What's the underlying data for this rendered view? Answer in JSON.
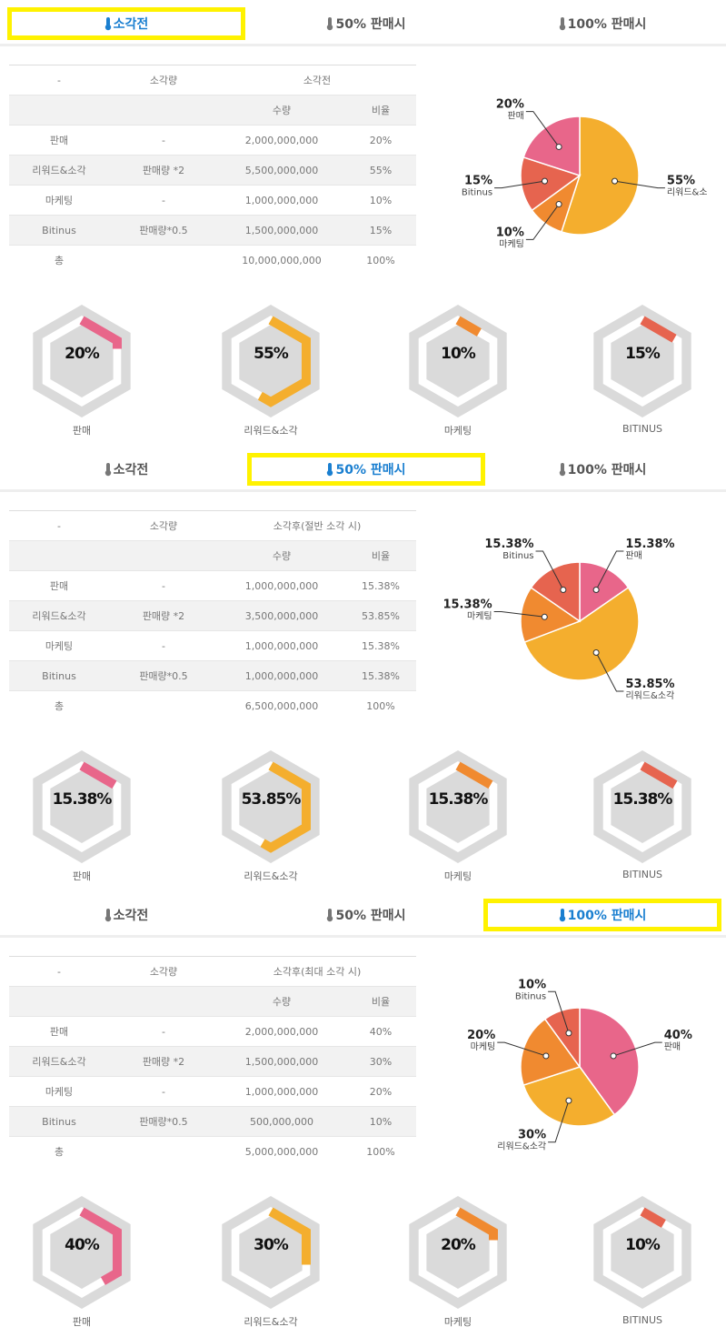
{
  "tab_labels": [
    "소각전",
    "50% 판매시",
    "100% 판매시"
  ],
  "colors": {
    "active_tab": "#1a7fd0",
    "highlight": "#fff200",
    "판매": "#e8668a",
    "리워드&소각": "#f4ae2e",
    "마케팅": "#f08a30",
    "Bitinus": "#e6644f"
  },
  "sections": [
    {
      "active_tab": 0,
      "table": {
        "headers": [
          "-",
          "소각량",
          "소각전"
        ],
        "sub": [
          "수량",
          "비율"
        ],
        "rows": [
          [
            "판매",
            "-",
            "2,000,000,000",
            "20%"
          ],
          [
            "리워드&소각",
            "판매량 *2",
            "5,500,000,000",
            "55%"
          ],
          [
            "마케팅",
            "-",
            "1,000,000,000",
            "10%"
          ],
          [
            "Bitinus",
            "판매량*0.5",
            "1,500,000,000",
            "15%"
          ],
          [
            "총",
            "",
            "10,000,000,000",
            "100%"
          ]
        ]
      },
      "pie": [
        {
          "key": "리워드&소각",
          "label": "리워드&소각",
          "value": 55,
          "display": "55%"
        },
        {
          "key": "마케팅",
          "label": "마케팅",
          "value": 10,
          "display": "10%"
        },
        {
          "key": "Bitinus",
          "label": "Bitinus",
          "value": 15,
          "display": "15%"
        },
        {
          "key": "판매",
          "label": "판매",
          "value": 20,
          "display": "20%"
        }
      ],
      "hexes": [
        {
          "key": "판매",
          "label": "판매",
          "value": 20,
          "display": "20%"
        },
        {
          "key": "리워드&소각",
          "label": "리워드&소각",
          "value": 55,
          "display": "55%"
        },
        {
          "key": "마케팅",
          "label": "마케팅",
          "value": 10,
          "display": "10%"
        },
        {
          "key": "Bitinus",
          "label": "BITINUS",
          "value": 15,
          "display": "15%"
        }
      ]
    },
    {
      "active_tab": 1,
      "table": {
        "headers": [
          "-",
          "소각량",
          "소각후(절반 소각 시)"
        ],
        "sub": [
          "수량",
          "비율"
        ],
        "rows": [
          [
            "판매",
            "-",
            "1,000,000,000",
            "15.38%"
          ],
          [
            "리워드&소각",
            "판매량 *2",
            "3,500,000,000",
            "53.85%"
          ],
          [
            "마케팅",
            "-",
            "1,000,000,000",
            "15.38%"
          ],
          [
            "Bitinus",
            "판매량*0.5",
            "1,000,000,000",
            "15.38%"
          ],
          [
            "총",
            "",
            "6,500,000,000",
            "100%"
          ]
        ]
      },
      "pie": [
        {
          "key": "판매",
          "label": "판매",
          "value": 15.38,
          "display": "15.38%"
        },
        {
          "key": "리워드&소각",
          "label": "리워드&소각",
          "value": 53.85,
          "display": "53.85%"
        },
        {
          "key": "마케팅",
          "label": "마케팅",
          "value": 15.38,
          "display": "15.38%"
        },
        {
          "key": "Bitinus",
          "label": "Bitinus",
          "value": 15.38,
          "display": "15.38%"
        }
      ],
      "hexes": [
        {
          "key": "판매",
          "label": "판매",
          "value": 15.38,
          "display": "15.38%"
        },
        {
          "key": "리워드&소각",
          "label": "리워드&소각",
          "value": 53.85,
          "display": "53.85%"
        },
        {
          "key": "마케팅",
          "label": "마케팅",
          "value": 15.38,
          "display": "15.38%"
        },
        {
          "key": "Bitinus",
          "label": "BITINUS",
          "value": 15.38,
          "display": "15.38%"
        }
      ]
    },
    {
      "active_tab": 2,
      "table": {
        "headers": [
          "-",
          "소각량",
          "소각후(최대 소각 시)"
        ],
        "sub": [
          "수량",
          "비율"
        ],
        "rows": [
          [
            "판매",
            "-",
            "2,000,000,000",
            "40%"
          ],
          [
            "리워드&소각",
            "판매량 *2",
            "1,500,000,000",
            "30%"
          ],
          [
            "마케팅",
            "-",
            "1,000,000,000",
            "20%"
          ],
          [
            "Bitinus",
            "판매량*0.5",
            "500,000,000",
            "10%"
          ],
          [
            "총",
            "",
            "5,000,000,000",
            "100%"
          ]
        ]
      },
      "pie": [
        {
          "key": "판매",
          "label": "판매",
          "value": 40,
          "display": "40%"
        },
        {
          "key": "리워드&소각",
          "label": "리워드&소각",
          "value": 30,
          "display": "30%"
        },
        {
          "key": "마케팅",
          "label": "마케팅",
          "value": 20,
          "display": "20%"
        },
        {
          "key": "Bitinus",
          "label": "Bitinus",
          "value": 10,
          "display": "10%"
        }
      ],
      "hexes": [
        {
          "key": "판매",
          "label": "판매",
          "value": 40,
          "display": "40%"
        },
        {
          "key": "리워드&소각",
          "label": "리워드&소각",
          "value": 30,
          "display": "30%"
        },
        {
          "key": "마케팅",
          "label": "마케팅",
          "value": 20,
          "display": "20%"
        },
        {
          "key": "Bitinus",
          "label": "BITINUS",
          "value": 10,
          "display": "10%"
        }
      ]
    }
  ]
}
